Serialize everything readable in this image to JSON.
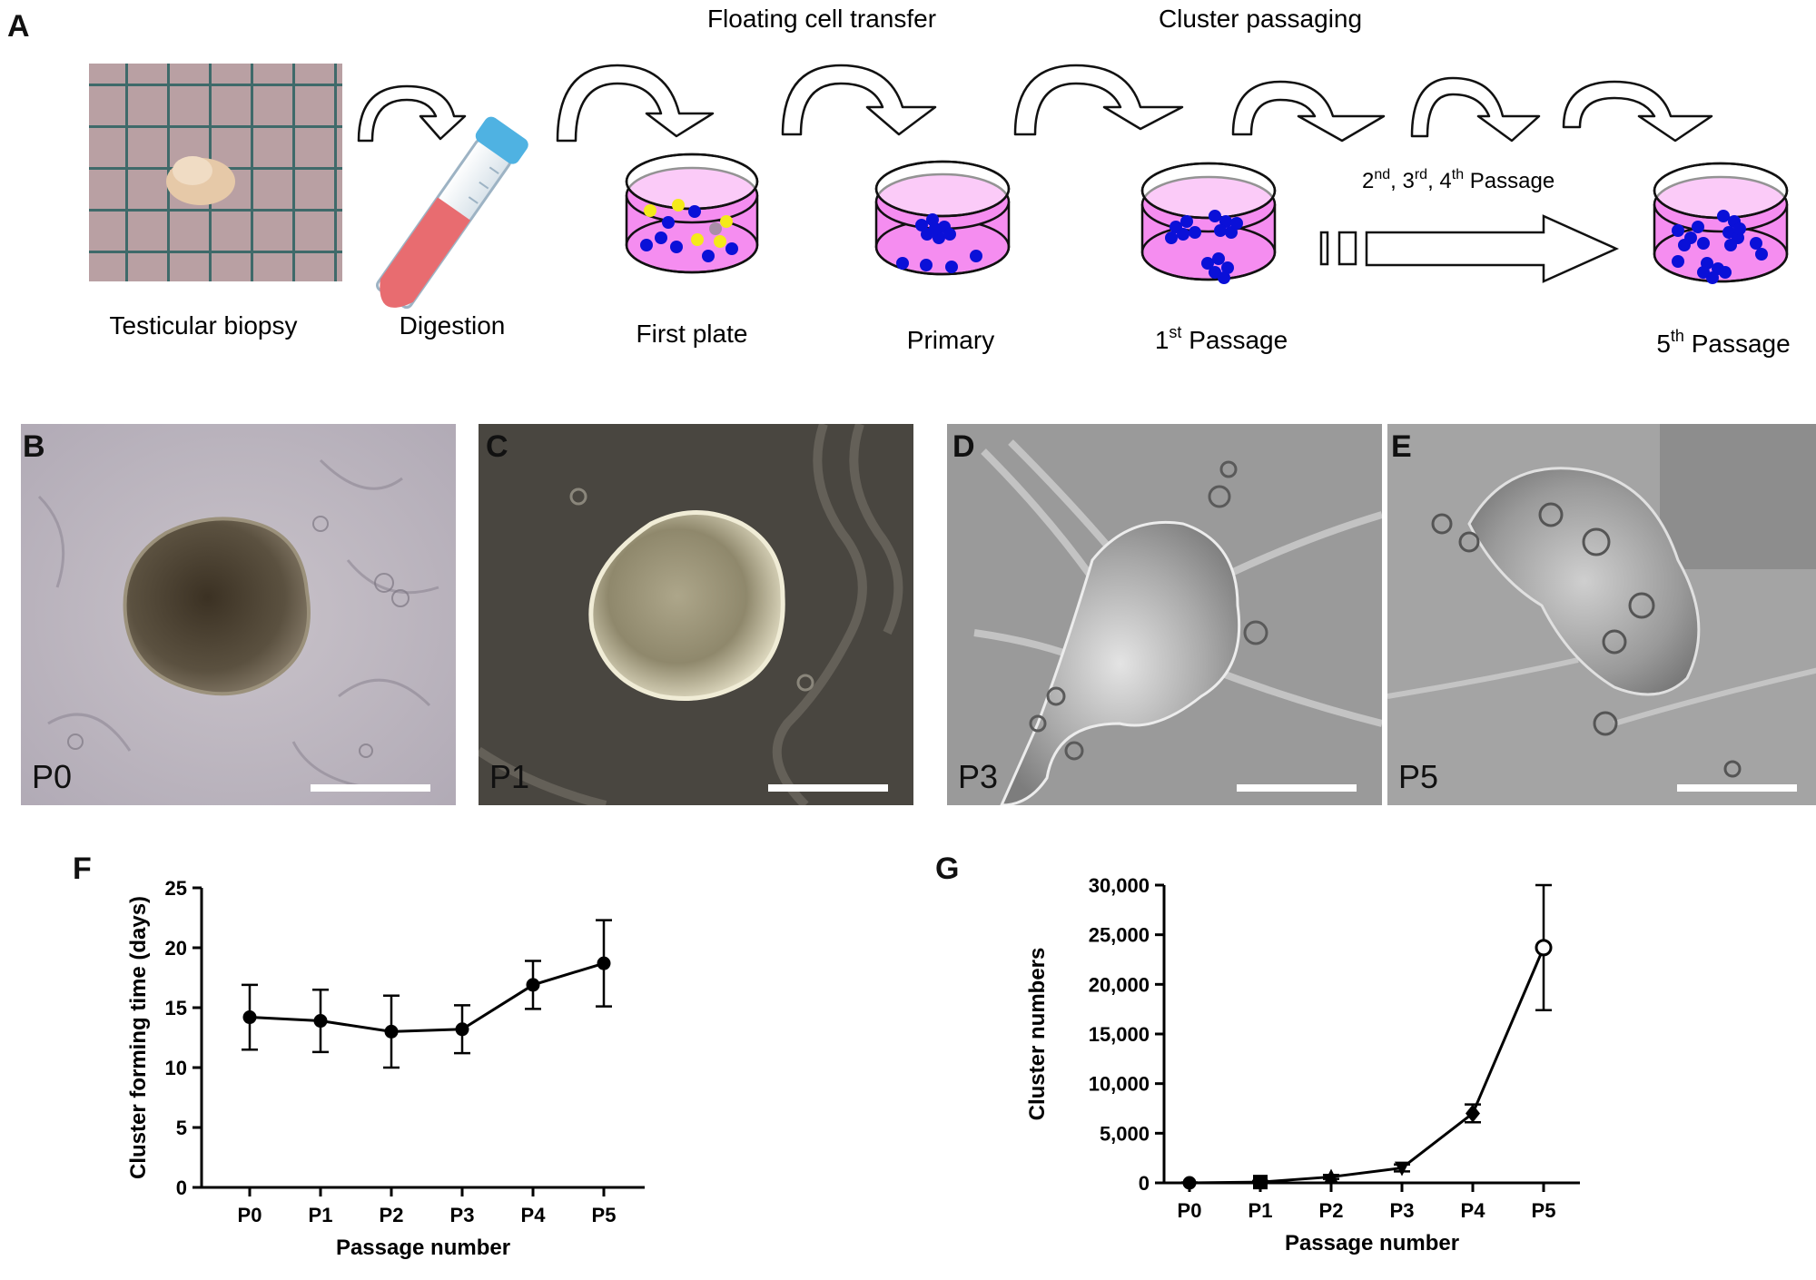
{
  "panelA": {
    "letter": "A",
    "top_labels": {
      "floating": "Floating cell transfer",
      "cluster": "Cluster passaging"
    },
    "mid_label": {
      "base": "2",
      "s1": "nd",
      "mid1": ", 3",
      "s2": "rd",
      "mid2": ", 4",
      "s3": "th",
      "tail": " Passage"
    },
    "labels": {
      "biopsy": "Testicular biopsy",
      "digestion": "Digestion",
      "first_plate": "First plate",
      "primary": "Primary",
      "p1": {
        "base": "1",
        "sup": "st",
        "tail": " Passage"
      },
      "p5": {
        "base": "5",
        "sup": "th",
        "tail": " Passage"
      }
    },
    "colors": {
      "dish_fill": "#f58df0",
      "cell_blue": "#0a10d8",
      "cell_yellow": "#f4ea1a",
      "cell_gray": "#a98ea8"
    }
  },
  "micrographs": [
    {
      "letter": "B",
      "label": "P0"
    },
    {
      "letter": "C",
      "label": "P1"
    },
    {
      "letter": "D",
      "label": "P3"
    },
    {
      "letter": "E",
      "label": "P5"
    }
  ],
  "chart_data": [
    {
      "panel": "F",
      "type": "line",
      "categories": [
        "P0",
        "P1",
        "P2",
        "P3",
        "P4",
        "P5"
      ],
      "series": [
        {
          "values": [
            14.2,
            13.9,
            13.0,
            13.2,
            16.9,
            18.7
          ],
          "error": [
            2.7,
            2.6,
            3.0,
            2.0,
            2.0,
            3.6
          ],
          "marker": "filled-circle"
        }
      ],
      "xlabel": "Passage number",
      "ylabel": "Cluster forming time (days)",
      "ylim": [
        0,
        25
      ],
      "yticks": [
        "0",
        "5",
        "10",
        "15",
        "20",
        "25"
      ]
    },
    {
      "panel": "G",
      "type": "line",
      "categories": [
        "P0",
        "P1",
        "P2",
        "P3",
        "P4",
        "P5"
      ],
      "series": [
        {
          "values": [
            0,
            80,
            600,
            1500,
            7000,
            23700
          ],
          "error": [
            50,
            120,
            200,
            350,
            900,
            6300
          ],
          "marker": [
            "filled-circle",
            "filled-square",
            "filled-triangle",
            "filled-triangle-down",
            "filled-diamond",
            "open-circle"
          ]
        }
      ],
      "xlabel": "Passage number",
      "ylabel": "Cluster numbers",
      "ylim": [
        0,
        30000
      ],
      "yticks": [
        "0",
        "5,000",
        "10,000",
        "15,000",
        "20,000",
        "25,000",
        "30,000"
      ]
    }
  ]
}
